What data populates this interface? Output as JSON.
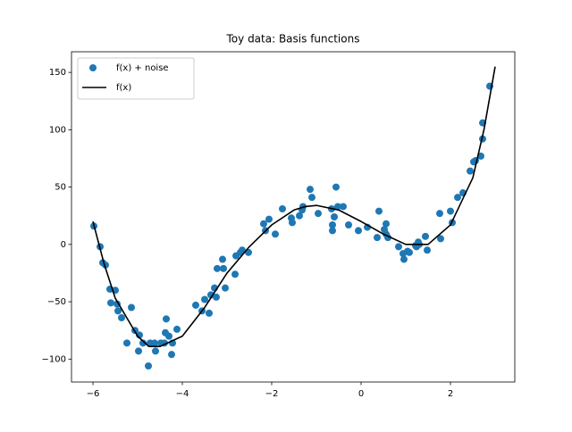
{
  "chart_data": {
    "type": "scatter",
    "title": "Toy data: Basis functions",
    "xlim": [
      -6.48,
      3.44
    ],
    "ylim": [
      -120,
      168
    ],
    "xticks": [
      {
        "value": -6,
        "label": "−6"
      },
      {
        "value": -4,
        "label": "−4"
      },
      {
        "value": -2,
        "label": "−2"
      },
      0,
      2
    ],
    "yticks": [
      {
        "value": -100,
        "label": "−100"
      },
      {
        "value": -50,
        "label": "−50"
      },
      0,
      50,
      100,
      150
    ],
    "legend": "upper left",
    "series": [
      {
        "name": "f(x) + noise",
        "type": "scatter",
        "color": "#1f77b4",
        "x": [
          -5.98,
          -5.84,
          -5.78,
          -5.72,
          -5.62,
          -5.6,
          -5.5,
          -5.46,
          -5.44,
          -5.36,
          -5.24,
          -5.14,
          -5.06,
          -4.96,
          -4.98,
          -4.88,
          -4.76,
          -4.72,
          -4.62,
          -4.6,
          -4.48,
          -4.4,
          -4.38,
          -4.36,
          -4.3,
          -4.24,
          -4.22,
          -4.12,
          -3.7,
          -3.56,
          -3.5,
          -3.4,
          -3.36,
          -3.28,
          -3.24,
          -3.22,
          -3.1,
          -3.08,
          -3.04,
          -2.82,
          -2.8,
          -2.7,
          -2.66,
          -2.52,
          -2.18,
          -2.14,
          -2.06,
          -1.92,
          -1.76,
          -1.56,
          -1.54,
          -1.38,
          -1.32,
          -1.3,
          -1.14,
          -1.1,
          -0.96,
          -0.66,
          -0.64,
          -0.64,
          -0.6,
          -0.56,
          -0.52,
          -0.4,
          -0.28,
          -0.06,
          0.14,
          0.36,
          0.4,
          0.52,
          0.56,
          0.56,
          0.6,
          0.84,
          0.94,
          0.96,
          1.04,
          1.08,
          1.22,
          1.24,
          1.28,
          1.3,
          1.44,
          1.48,
          1.78,
          1.76,
          2.0,
          2.04,
          2.16,
          2.28,
          2.44,
          2.52,
          2.56,
          2.68,
          2.72,
          2.72,
          2.88
        ],
        "values": [
          16,
          -2,
          -16,
          -18,
          -39,
          -51,
          -40,
          -52,
          -58,
          -64,
          -86,
          -55,
          -75,
          -79,
          -93,
          -86,
          -106,
          -86,
          -86,
          -93,
          -86,
          -86,
          -77,
          -65,
          -80,
          -96,
          -86,
          -74,
          -53,
          -58,
          -48,
          -60,
          -44,
          -38,
          -46,
          -21,
          -13,
          -21,
          -38,
          -26,
          -10,
          -7,
          -5,
          -7,
          18,
          12,
          22,
          9,
          31,
          23,
          19,
          25,
          30,
          33,
          48,
          41,
          27,
          31,
          17,
          12,
          24,
          50,
          33,
          33,
          17,
          12,
          15,
          6,
          29,
          13,
          18,
          9,
          6,
          -2,
          -8,
          -13,
          -6,
          -7,
          -1,
          -2,
          2,
          0,
          7,
          -5,
          5,
          27,
          29,
          19,
          41,
          45,
          64,
          72,
          73,
          77,
          106,
          92,
          138
        ]
      },
      {
        "name": "f(x)",
        "type": "line",
        "color": "#000000",
        "x": [
          -6,
          -5.75,
          -5.5,
          -5,
          -4.75,
          -4.5,
          -4,
          -3.5,
          -3,
          -2.5,
          -2,
          -1.5,
          -1.25,
          -1,
          -0.5,
          0,
          0.5,
          1,
          1.5,
          2,
          2.5,
          2.75,
          3
        ],
        "values": [
          20,
          -17,
          -47,
          -80,
          -89,
          -89,
          -80,
          -55,
          -25,
          -2,
          17,
          30,
          33,
          34,
          30,
          20,
          9,
          0,
          0,
          17,
          58,
          100,
          155
        ]
      }
    ]
  }
}
